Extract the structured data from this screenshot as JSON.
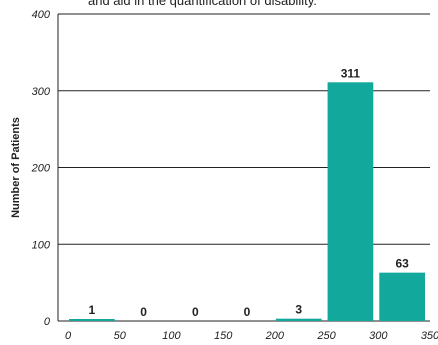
{
  "caption": "and aid in the quantification of disability.",
  "chart_data": {
    "type": "bar",
    "title": "",
    "xlabel": "",
    "ylabel": "Number of Patients",
    "bins": [
      [
        0,
        50
      ],
      [
        50,
        100
      ],
      [
        100,
        150
      ],
      [
        150,
        200
      ],
      [
        200,
        250
      ],
      [
        250,
        300
      ],
      [
        300,
        350
      ]
    ],
    "values": [
      1,
      0,
      0,
      0,
      3,
      311,
      63
    ],
    "data_labels": [
      "1",
      "0",
      "0",
      "0",
      "3",
      "311",
      "63"
    ],
    "x_ticks": [
      "0",
      "50",
      "100",
      "150",
      "200",
      "250",
      "300",
      "350"
    ],
    "y_ticks": [
      "0",
      "100",
      "200",
      "300",
      "400"
    ],
    "xlim": [
      0,
      350
    ],
    "ylim": [
      0,
      400
    ],
    "grid": "horizontal",
    "bar_color": "#12a89b"
  }
}
